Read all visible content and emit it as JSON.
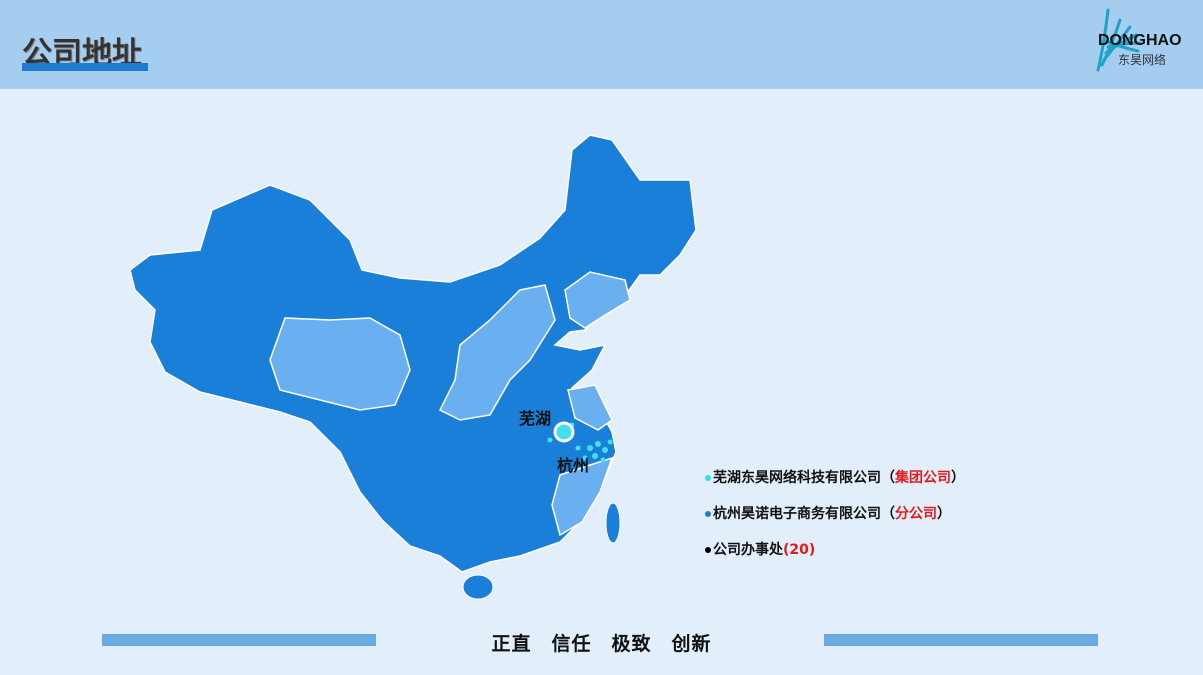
{
  "header": {
    "title": "公司地址",
    "logo_en": "DONGHAO",
    "logo_cn": "东昊网络"
  },
  "map": {
    "cities": [
      {
        "name": "芜湖"
      },
      {
        "name": "杭州"
      }
    ],
    "colors": {
      "base": "#1a7fd8",
      "highlight": "#6aaff0",
      "marker": "#40e0f0",
      "border": "#ffffff"
    }
  },
  "legend": [
    {
      "text": "芜湖东昊网络科技有限公司",
      "paren_open": "（",
      "tag": "集团公司",
      "paren_close": "）",
      "dot_color": "#2ee0f0"
    },
    {
      "text": "杭州昊诺电子商务有限公司",
      "paren_open": "（",
      "tag": "分公司",
      "paren_close": "）",
      "dot_color": "#1a7fd8"
    },
    {
      "text": "公司办事处",
      "paren_open": "(",
      "tag": "20",
      "paren_close": ")",
      "dot_color": "#000000"
    }
  ],
  "footer": {
    "slogans": [
      "正直",
      "信任",
      "极致",
      "创新"
    ]
  }
}
